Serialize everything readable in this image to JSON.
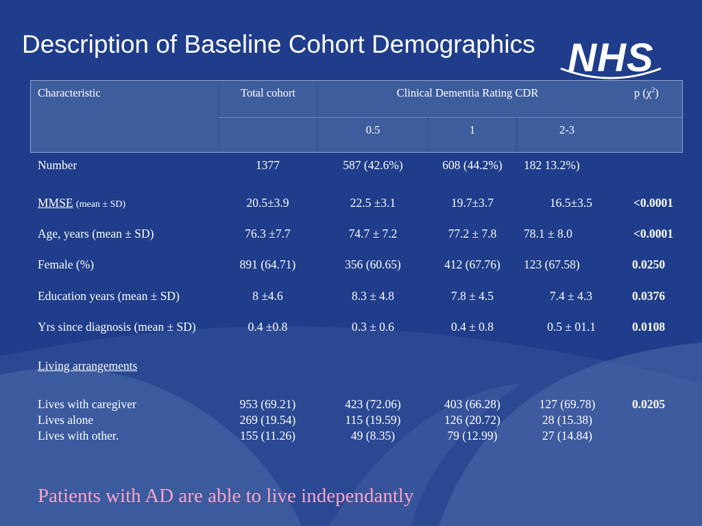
{
  "title": "Description of Baseline Cohort Demographics",
  "logo": {
    "text": "NHS"
  },
  "table": {
    "headers": {
      "characteristic": "Characteristic",
      "total": "Total cohort",
      "cdr": "Clinical Dementia Rating CDR",
      "p_prefix": "p (χ",
      "p_sup": "2",
      "p_suffix": ")",
      "sub": [
        "0.5",
        "1",
        "2-3"
      ]
    },
    "rows": [
      {
        "label": "Number",
        "total": "1377",
        "c05": "587 (42.6%)",
        "c1": "608 (44.2%)",
        "c23": "182 13.2%)",
        "p": ""
      },
      {
        "label": "MMSE",
        "label_suffix": "(mean ± SD)",
        "total": "20.5±3.9",
        "c05": "22.5 ±3.1",
        "c1": "19.7±3.7",
        "c23": "16.5±3.5",
        "p": "<0.0001"
      },
      {
        "label": "Age, years (mean ± SD)",
        "total": "76.3 ±7.7",
        "c05": "74.7 ± 7.2",
        "c1": "77.2 ± 7.8",
        "c23": "78.1 ± 8.0",
        "p": "<0.0001"
      },
      {
        "label": "Female (%)",
        "total": "891 (64.71)",
        "c05": "356 (60.65)",
        "c1": "412 (67.76)",
        "c23": "123 (67.58)",
        "p": "0.0250"
      },
      {
        "label": "Education years (mean ± SD)",
        "total": "8 ±4.6",
        "c05": "8.3 ± 4.8",
        "c1": "7.8 ± 4.5",
        "c23": "7.4 ± 4.3",
        "p": "0.0376"
      },
      {
        "label": "Yrs since diagnosis (mean ± SD)",
        "total": "0.4 ±0.8",
        "c05": "0.3 ± 0.6",
        "c1": "0.4 ± 0.8",
        "c23": "0.5 ± 01.1",
        "p": "0.0108"
      }
    ],
    "living": {
      "heading": "Living arrangements",
      "labels": [
        "Lives with caregiver",
        "Lives alone",
        "Lives with other."
      ],
      "total": [
        "953 (69.21)",
        "269 (19.54)",
        "155 (11.26)"
      ],
      "c05": [
        "423 (72.06)",
        "115 (19.59)",
        "49 (8.35)"
      ],
      "c1": [
        "403 (66.28)",
        "126 (20.72)",
        "79 (12.99)"
      ],
      "c23": [
        "127 (69.78)",
        "28 (15.38)",
        "27 (14.84)"
      ],
      "p": "0.0205"
    }
  },
  "footer": "Patients with AD are able to live independantly"
}
